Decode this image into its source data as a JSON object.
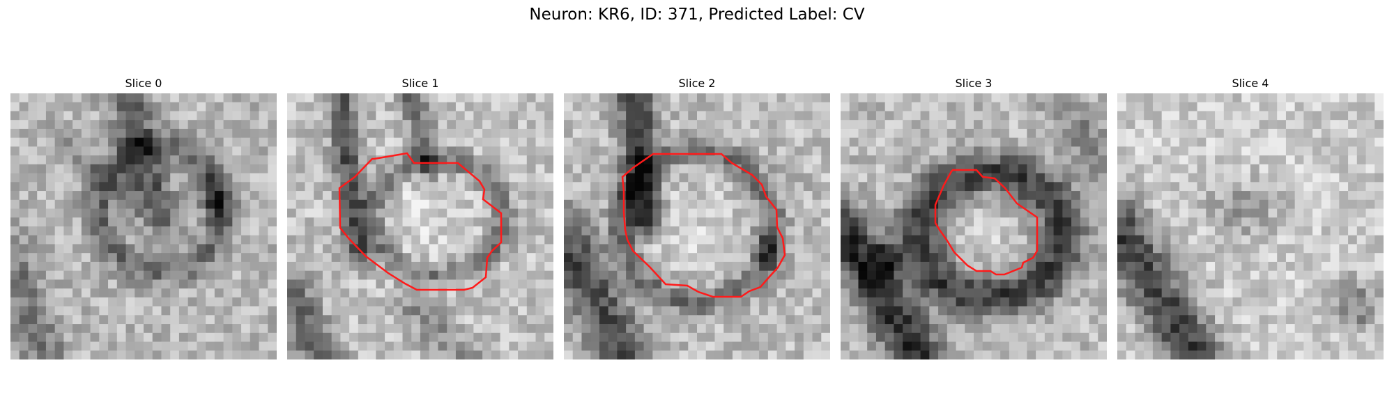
{
  "figure": {
    "title": "Neuron: KR6, ID: 371, Predicted Label: CV"
  },
  "colors": {
    "contour": "#ff1a1a",
    "background": "#ffffff"
  },
  "slices": [
    {
      "title": "Slice 0"
    },
    {
      "title": "Slice 1"
    },
    {
      "title": "Slice 2"
    },
    {
      "title": "Slice 3"
    },
    {
      "title": "Slice 4"
    }
  ]
}
